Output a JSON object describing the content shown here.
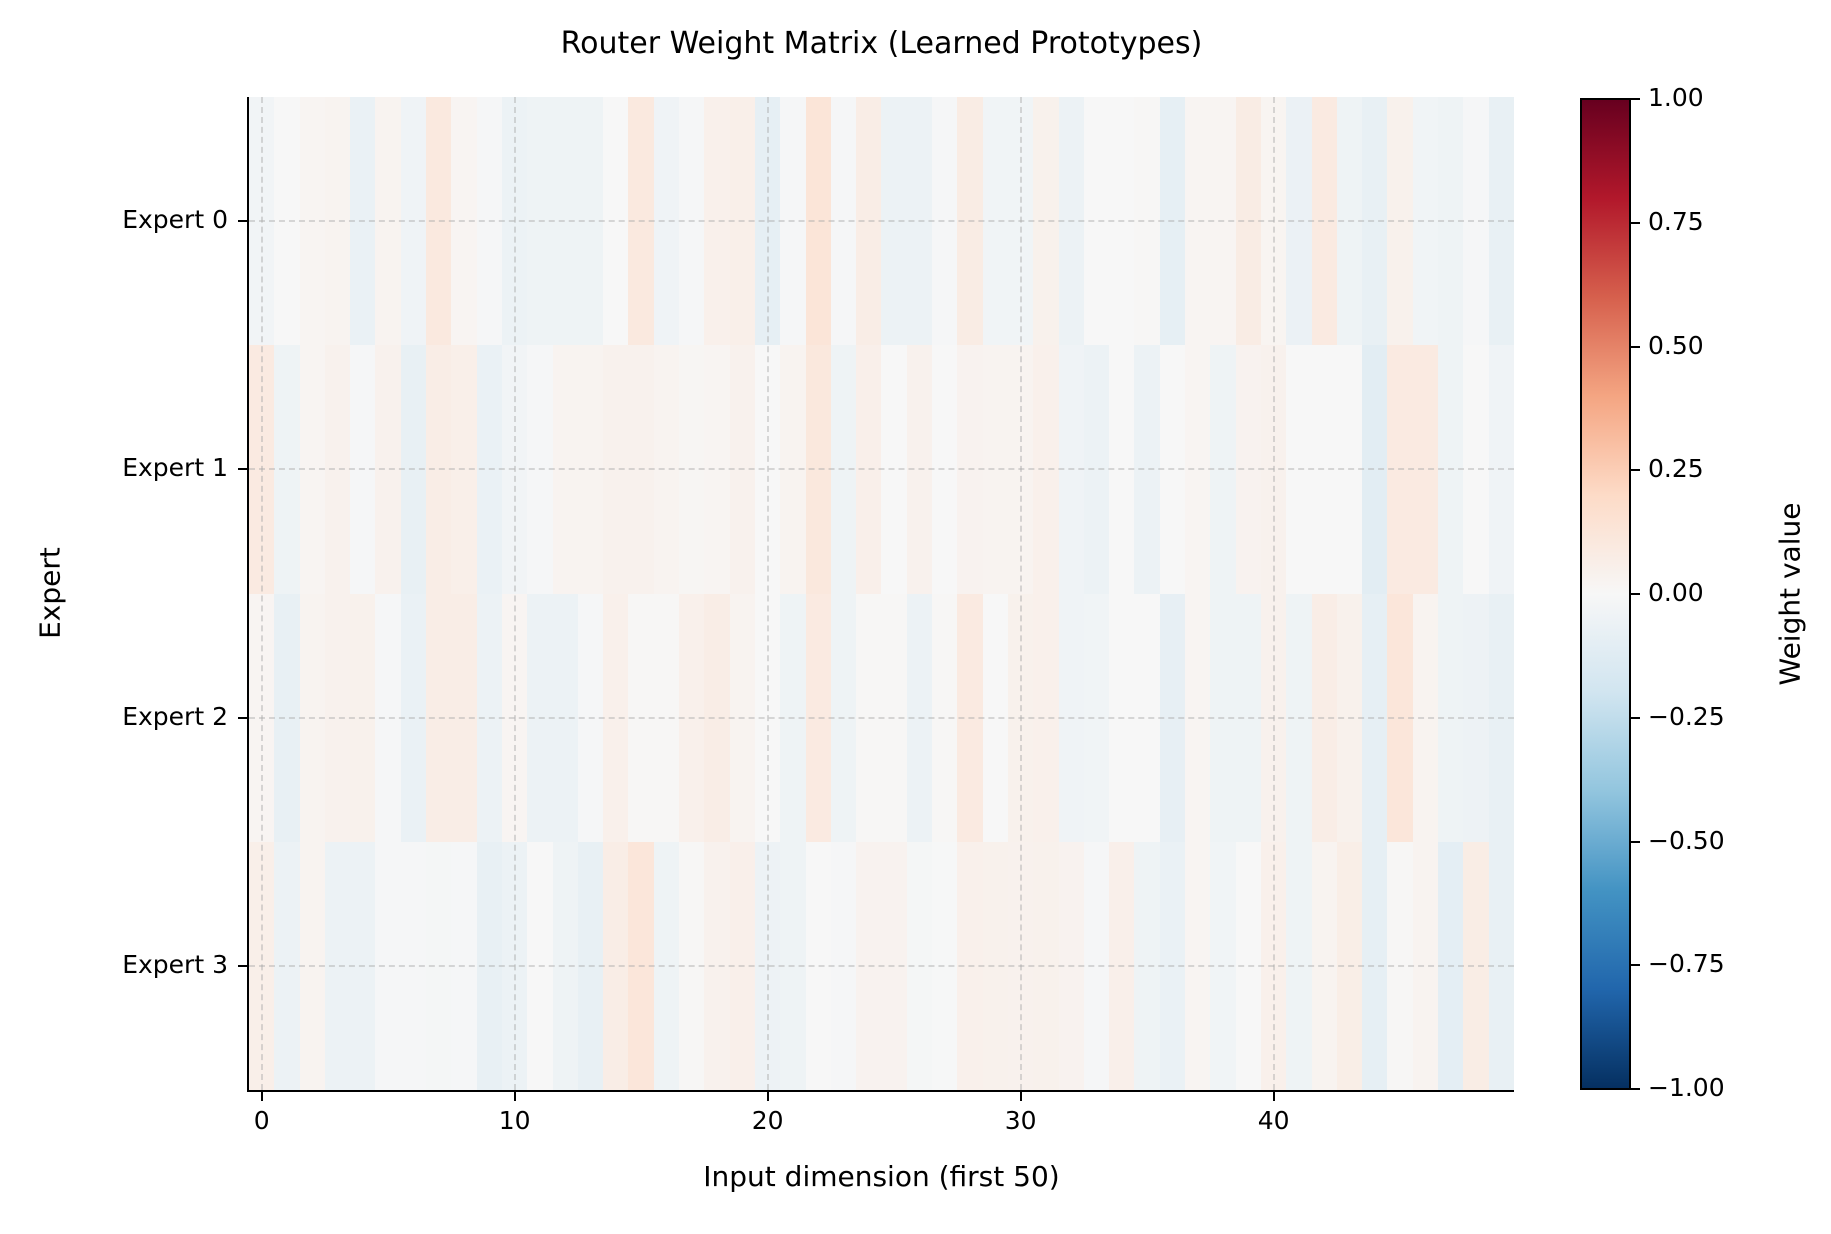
{
  "chart_data": {
    "type": "heatmap",
    "title": "Router Weight Matrix (Learned Prototypes)",
    "xlabel": "Input dimension (first 50)",
    "ylabel": "Expert",
    "x_ticks": [
      0,
      10,
      20,
      30,
      40
    ],
    "x_tick_labels": [
      "0",
      "10",
      "20",
      "30",
      "40"
    ],
    "y_categories": [
      "Expert 0",
      "Expert 1",
      "Expert 2",
      "Expert 3"
    ],
    "colormap": "RdBu_r",
    "vmin": -1.0,
    "vmax": 1.0,
    "colorbar": {
      "label": "Weight value",
      "ticks": [
        "1.00",
        "0.75",
        "0.50",
        "0.25",
        "0.00",
        "-0.25",
        "-0.50",
        "-0.75",
        "-1.00"
      ]
    },
    "grid": true,
    "n_columns": 50,
    "values": [
      [
        -0.03,
        0.0,
        0.02,
        0.03,
        -0.07,
        0.03,
        -0.04,
        0.1,
        0.02,
        -0.01,
        -0.06,
        -0.05,
        -0.05,
        -0.05,
        0.0,
        0.1,
        -0.04,
        -0.01,
        0.05,
        0.06,
        -0.09,
        -0.01,
        0.13,
        -0.01,
        0.07,
        -0.06,
        -0.06,
        -0.01,
        0.08,
        -0.035,
        -0.035,
        0.045,
        -0.06,
        0.0,
        0.0,
        0.01,
        -0.09,
        0.02,
        0.02,
        0.08,
        0.025,
        -0.065,
        0.09,
        -0.045,
        -0.08,
        0.045,
        -0.035,
        -0.05,
        -0.01,
        -0.08
      ],
      [
        0.09,
        -0.05,
        0.02,
        0.04,
        -0.01,
        0.04,
        -0.08,
        0.07,
        0.06,
        -0.07,
        -0.03,
        -0.01,
        0.03,
        0.03,
        0.04,
        0.04,
        0.03,
        0.015,
        0.02,
        0.04,
        0.0,
        0.03,
        0.11,
        -0.05,
        0.055,
        0.0,
        0.04,
        0.0,
        0.035,
        0.03,
        0.03,
        0.05,
        -0.04,
        -0.06,
        0.0,
        -0.06,
        0.0,
        0.02,
        -0.045,
        0.035,
        0.04,
        0.0,
        0.0,
        0.0,
        -0.11,
        0.09,
        0.09,
        -0.045,
        0.0,
        -0.04
      ],
      [
        0.02,
        -0.08,
        0.03,
        0.04,
        0.045,
        -0.01,
        -0.07,
        0.07,
        0.07,
        -0.06,
        0.02,
        -0.06,
        -0.06,
        -0.01,
        0.05,
        0.01,
        0.01,
        0.05,
        0.07,
        0.03,
        0.0,
        -0.05,
        0.09,
        -0.045,
        0.01,
        0.01,
        -0.06,
        0.01,
        0.09,
        0.0,
        0.045,
        0.05,
        -0.04,
        -0.035,
        0.0,
        0.0,
        -0.085,
        0.02,
        -0.05,
        -0.045,
        0.04,
        -0.05,
        0.07,
        0.045,
        -0.09,
        0.12,
        0.03,
        -0.045,
        -0.055,
        -0.08
      ],
      [
        0.06,
        -0.06,
        0.03,
        -0.06,
        -0.06,
        -0.01,
        -0.01,
        -0.015,
        -0.01,
        -0.08,
        -0.06,
        0.0,
        -0.05,
        -0.08,
        0.07,
        0.12,
        -0.05,
        0.01,
        0.04,
        0.055,
        -0.055,
        -0.045,
        0.0,
        -0.01,
        0.035,
        0.035,
        -0.015,
        -0.005,
        0.05,
        0.045,
        0.04,
        0.045,
        0.035,
        -0.01,
        0.055,
        -0.045,
        -0.07,
        0.02,
        -0.035,
        0.0,
        0.05,
        -0.05,
        0.03,
        0.065,
        -0.09,
        0.01,
        0.03,
        -0.1,
        0.075,
        -0.08
      ]
    ]
  }
}
